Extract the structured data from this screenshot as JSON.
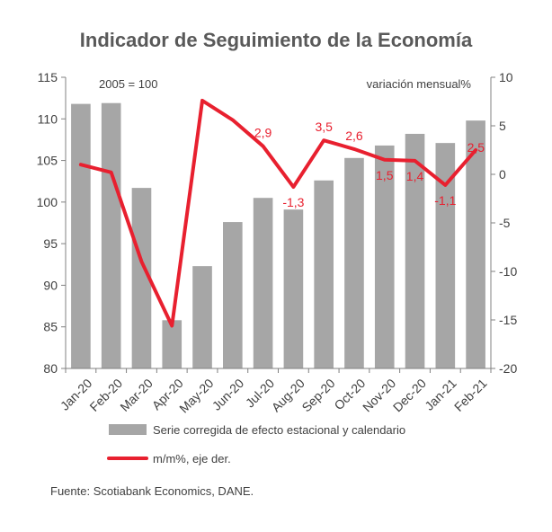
{
  "chart_data": {
    "type": "bar",
    "title": "Indicador de Seguimiento de la Economía",
    "categories": [
      "Jan-20",
      "Feb-20",
      "Mar-20",
      "Apr-20",
      "May-20",
      "Jun-20",
      "Jul-20",
      "Aug-20",
      "Sep-20",
      "Oct-20",
      "Nov-20",
      "Dec-20",
      "Jan-21",
      "Feb-21"
    ],
    "series": [
      {
        "name": "Serie corregida de efecto estacional y calendario",
        "type": "bar",
        "axis": "left",
        "color": "#a6a6a6",
        "values": [
          111.8,
          111.9,
          101.7,
          85.8,
          92.3,
          97.6,
          100.5,
          99.1,
          102.6,
          105.3,
          106.8,
          108.2,
          107.1,
          109.8
        ]
      },
      {
        "name": "m/m%, eje der.",
        "type": "line",
        "axis": "right",
        "color": "#e8202f",
        "values": [
          1.0,
          0.2,
          -9.0,
          -15.6,
          7.6,
          5.6,
          2.9,
          -1.3,
          3.5,
          2.6,
          1.5,
          1.4,
          -1.1,
          2.5
        ]
      }
    ],
    "left_axis": {
      "ylim": [
        80,
        115
      ],
      "ticks": [
        80,
        85,
        90,
        95,
        100,
        105,
        110,
        115
      ],
      "annotation": "2005 = 100"
    },
    "right_axis": {
      "ylim": [
        -20,
        10
      ],
      "ticks": [
        -20,
        -15,
        -10,
        -5,
        0,
        5,
        10
      ],
      "annotation": "variación mensual%"
    },
    "data_labels": [
      {
        "index": 6,
        "text": "2,9"
      },
      {
        "index": 7,
        "text": "-1,3"
      },
      {
        "index": 8,
        "text": "3,5"
      },
      {
        "index": 9,
        "text": "2,6"
      },
      {
        "index": 10,
        "text": "1,5"
      },
      {
        "index": 11,
        "text": "1,4"
      },
      {
        "index": 12,
        "text": "-1,1"
      },
      {
        "index": 13,
        "text": "2,5"
      }
    ],
    "legend": {
      "position": "bottom"
    },
    "grid": false
  },
  "source": "Fuente: Scotiabank Economics, DANE."
}
